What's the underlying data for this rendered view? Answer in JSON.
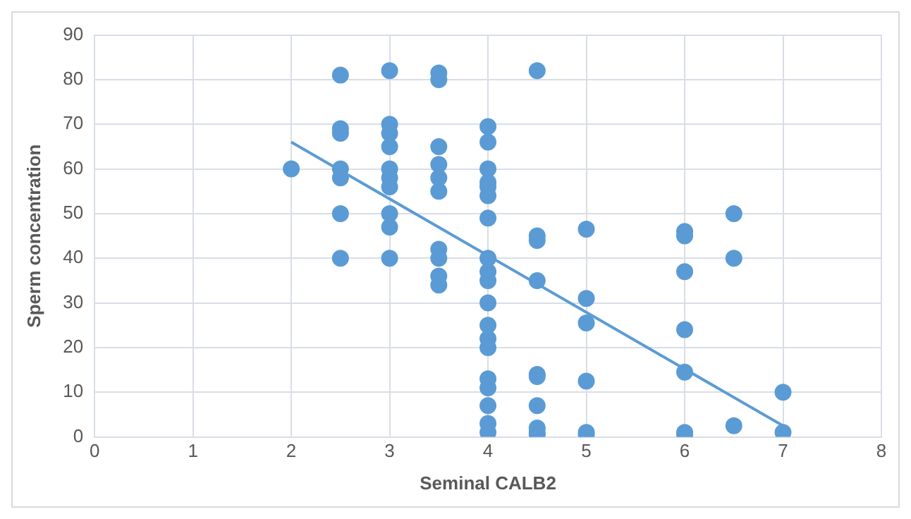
{
  "chart_data": {
    "type": "scatter",
    "xlabel": "Seminal CALB2",
    "ylabel": "Sperm concentration",
    "xlim": [
      0,
      8
    ],
    "xticks": [
      0,
      1,
      2,
      3,
      4,
      5,
      6,
      7,
      8
    ],
    "ylim": [
      0,
      90
    ],
    "yticks": [
      0,
      10,
      20,
      30,
      40,
      50,
      60,
      70,
      80,
      90
    ],
    "grid": true,
    "marker": "circle",
    "series": [
      {
        "type": "scatter",
        "color": "#5b9bd5",
        "x": [
          2,
          2.5,
          2.5,
          2.5,
          2.5,
          2.5,
          2.5,
          2.5,
          3,
          3,
          3,
          3,
          3,
          3,
          3,
          3,
          3,
          3,
          3.5,
          3.5,
          3.5,
          3.5,
          3.5,
          3.5,
          3.5,
          3.5,
          3.5,
          3.5,
          4,
          4,
          4,
          4,
          4,
          4,
          4,
          4,
          4,
          4,
          4,
          4,
          4,
          4,
          4,
          4,
          4,
          4,
          4,
          4.5,
          4.5,
          4.5,
          4.5,
          4.5,
          4.5,
          4.5,
          4.5,
          4.5,
          4.5,
          5,
          5,
          5,
          5,
          5,
          5,
          6,
          6,
          6,
          6,
          6,
          6,
          6,
          6.5,
          6.5,
          6.5,
          7,
          7
        ],
        "values": [
          60,
          81,
          69,
          68,
          60,
          58,
          50,
          40,
          82,
          70,
          68,
          65,
          60,
          58,
          56,
          50,
          47,
          40,
          81.5,
          80,
          65,
          61,
          58,
          55,
          42,
          40,
          36,
          34,
          69.5,
          66,
          60,
          57,
          56,
          54,
          49,
          40,
          37,
          35,
          30,
          25,
          22,
          20,
          13,
          11,
          7,
          3,
          1,
          82,
          45,
          44,
          35,
          14,
          13.5,
          7,
          2,
          1,
          0.5,
          46.5,
          31,
          25.5,
          12.5,
          1,
          0.5,
          46,
          45,
          37,
          24,
          14.5,
          1,
          0.5,
          50,
          40,
          2.5,
          10,
          1
        ]
      },
      {
        "type": "line",
        "color": "#5b9bd5",
        "x": [
          2,
          7
        ],
        "values": [
          66,
          2.5
        ],
        "marker": "none"
      }
    ]
  }
}
